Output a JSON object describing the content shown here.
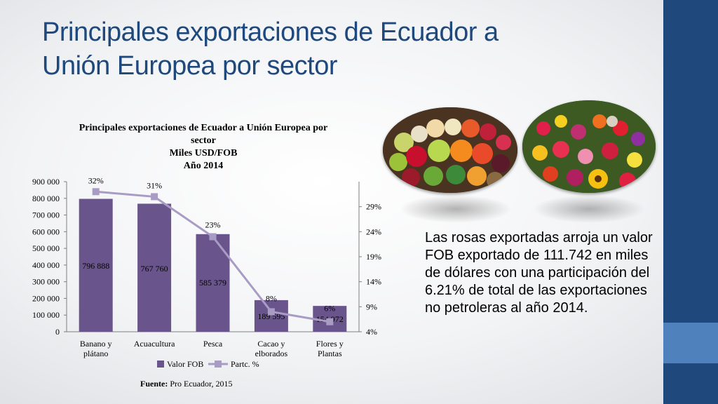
{
  "slide": {
    "title_line1": "Principales exportaciones de Ecuador a",
    "title_line2": "Unión Europea por sector"
  },
  "chart_title": {
    "line1": "Principales exportaciones de Ecuador a Unión Europea por",
    "line2": "sector",
    "line3": "Miles USD/FOB",
    "line4": "Año 2014"
  },
  "chart_data": {
    "type": "bar",
    "categories": [
      [
        "Banano y",
        "plátano"
      ],
      [
        "Acuacultura"
      ],
      [
        "Pesca"
      ],
      [
        "Cacao y",
        "elborados"
      ],
      [
        "Flores y",
        "Plantas"
      ]
    ],
    "series": [
      {
        "name": "Valor FOB",
        "type": "bar",
        "axis": "left",
        "values": [
          796888,
          767760,
          585379,
          189595,
          154972
        ],
        "labels": [
          "796 888",
          "767 760",
          "585 379",
          "189 595",
          "154 972"
        ]
      },
      {
        "name": "Partc. %",
        "type": "line",
        "axis": "right",
        "values": [
          32,
          31,
          23,
          8,
          6
        ],
        "labels": [
          "32%",
          "31%",
          "23%",
          "8%",
          "6%"
        ]
      }
    ],
    "left_axis": {
      "ylim": [
        0,
        900000
      ],
      "ticks": [
        0,
        100000,
        200000,
        300000,
        400000,
        500000,
        600000,
        700000,
        800000,
        900000
      ],
      "tick_labels": [
        "0",
        "100 000",
        "200 000",
        "300 000",
        "400 000",
        "500 000",
        "600 000",
        "700 000",
        "800 000",
        "900 000"
      ]
    },
    "right_axis": {
      "ylim": [
        4,
        34
      ],
      "ticks": [
        4,
        9,
        14,
        19,
        24,
        29
      ],
      "tick_labels": [
        "4%",
        "9%",
        "14%",
        "19%",
        "24%",
        "29%"
      ]
    },
    "legend": {
      "position": "bottom",
      "entries": [
        "Valor FOB",
        "Partc. %"
      ]
    },
    "colors": {
      "bar": "#6a548c",
      "line": "#a99cc4"
    }
  },
  "source": {
    "label": "Fuente:",
    "text": " Pro Ecuador, 2015"
  },
  "images": [
    {
      "name": "fruits-photo",
      "description": "fruit-icon"
    },
    {
      "name": "flowers-photo",
      "description": "flower-icon"
    }
  ],
  "caption": "Las rosas exportadas arroja un valor FOB exportado  de 111.742 en miles de dólares con una participación del 6.21% de total de las exportaciones no petroleras al año 2014."
}
